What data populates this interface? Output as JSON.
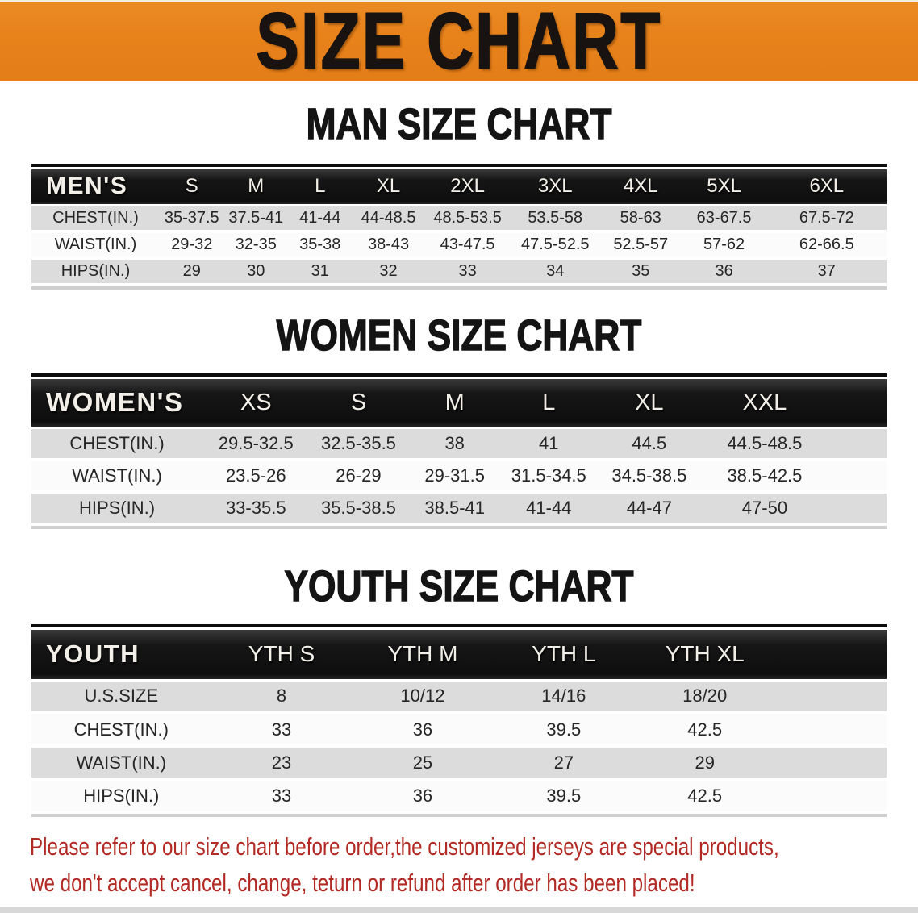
{
  "banner": {
    "title": "SIZE CHART"
  },
  "colors": {
    "banner_bg": "#e8821b",
    "banner_text": "#181310",
    "header_bar_bg": "#141414",
    "header_bar_text": "#f2efe8",
    "row_stripe_gray": "#dcdcdd",
    "row_stripe_white": "#fbfbfb",
    "disclaimer_red": "#b22a23"
  },
  "sections": [
    {
      "heading": "MAN SIZE CHART",
      "table": {
        "corner_label": "MEN'S",
        "columns": [
          "S",
          "M",
          "L",
          "XL",
          "2XL",
          "3XL",
          "4XL",
          "5XL",
          "6XL"
        ],
        "rows": [
          {
            "label": "CHEST(IN.)",
            "values": [
              "35-37.5",
              "37.5-41",
              "41-44",
              "44-48.5",
              "48.5-53.5",
              "53.5-58",
              "58-63",
              "63-67.5",
              "67.5-72"
            ]
          },
          {
            "label": "WAIST(IN.)",
            "values": [
              "29-32",
              "32-35",
              "35-38",
              "38-43",
              "43-47.5",
              "47.5-52.5",
              "52.5-57",
              "57-62",
              "62-66.5"
            ]
          },
          {
            "label": "HIPS(IN.)",
            "values": [
              "29",
              "30",
              "31",
              "32",
              "33",
              "34",
              "35",
              "36",
              "37"
            ]
          }
        ]
      }
    },
    {
      "heading": "WOMEN SIZE CHART",
      "table": {
        "corner_label": "WOMEN'S",
        "columns": [
          "XS",
          "S",
          "M",
          "L",
          "XL",
          "XXL"
        ],
        "rows": [
          {
            "label": "CHEST(IN.)",
            "values": [
              "29.5-32.5",
              "32.5-35.5",
              "38",
              "41",
              "44.5",
              "44.5-48.5"
            ]
          },
          {
            "label": "WAIST(IN.)",
            "values": [
              "23.5-26",
              "26-29",
              "29-31.5",
              "31.5-34.5",
              "34.5-38.5",
              "38.5-42.5"
            ]
          },
          {
            "label": "HIPS(IN.)",
            "values": [
              "33-35.5",
              "35.5-38.5",
              "38.5-41",
              "41-44",
              "44-47",
              "47-50"
            ]
          }
        ]
      }
    },
    {
      "heading": "YOUTH SIZE CHART",
      "table": {
        "corner_label": "YOUTH",
        "columns": [
          "YTH S",
          "YTH M",
          "YTH L",
          "YTH XL"
        ],
        "rows": [
          {
            "label": "U.S.SIZE",
            "values": [
              "8",
              "10/12",
              "14/16",
              "18/20"
            ]
          },
          {
            "label": "CHEST(IN.)",
            "values": [
              "33",
              "36",
              "39.5",
              "42.5"
            ]
          },
          {
            "label": "WAIST(IN.)",
            "values": [
              "23",
              "25",
              "27",
              "29"
            ]
          },
          {
            "label": "HIPS(IN.)",
            "values": [
              "33",
              "36",
              "39.5",
              "42.5"
            ]
          }
        ]
      }
    }
  ],
  "disclaimer": {
    "line1": "Please refer to our size chart before order,the customized jerseys are special products,",
    "line2": "we don't accept cancel, change, teturn or refund after order has been placed!"
  }
}
